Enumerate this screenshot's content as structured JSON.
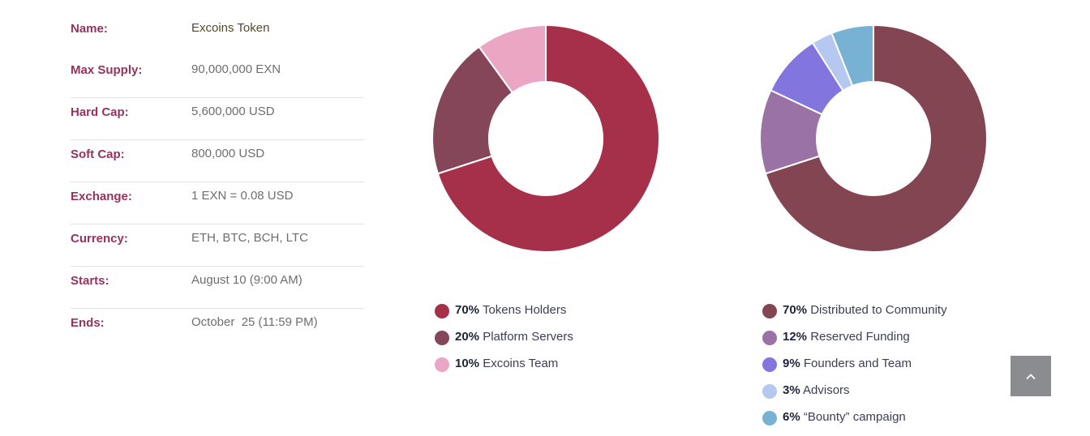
{
  "info": {
    "rows": [
      {
        "label": "Name:",
        "value": "Excoins Token"
      },
      {
        "label": "Max Supply:",
        "value": "90,000,000 EXN"
      },
      {
        "label": "Hard Cap:",
        "value": "5,600,000 USD"
      },
      {
        "label": "Soft Cap:",
        "value": "800,000 USD"
      },
      {
        "label": "Exchange:",
        "value": "1 EXN = 0.08 USD"
      },
      {
        "label": "Currency:",
        "value": "ETH, BTC, BCH, LTC"
      },
      {
        "label": "Starts:",
        "value": "August 10 (9:00 AM)"
      },
      {
        "label": "Ends:",
        "value": "October  25 (11:59 PM)"
      }
    ]
  },
  "chart_data": [
    {
      "type": "pie",
      "donut": true,
      "categories": [
        "Tokens Holders",
        "Platform Servers",
        "Excoins Team"
      ],
      "values": [
        70,
        20,
        10
      ],
      "labels": [
        "70%",
        "20%",
        "10%"
      ],
      "colors": [
        "#a6304a",
        "#844658",
        "#eaa6c2"
      ],
      "legend_position": "bottom"
    },
    {
      "type": "pie",
      "donut": true,
      "categories": [
        "Distributed to Community",
        "Reserved Funding",
        "Founders and Team",
        "Advisors",
        "“Bounty” campaign"
      ],
      "values": [
        70,
        12,
        9,
        3,
        6
      ],
      "labels": [
        "70%",
        "12%",
        "9%",
        "3%",
        "6%"
      ],
      "colors": [
        "#844553",
        "#9b72a6",
        "#8276de",
        "#b5c8f0",
        "#77b2d4"
      ],
      "legend_position": "bottom"
    }
  ],
  "scroll_top": {
    "icon": "chevron-up-icon",
    "color": "#8a8c8f"
  }
}
